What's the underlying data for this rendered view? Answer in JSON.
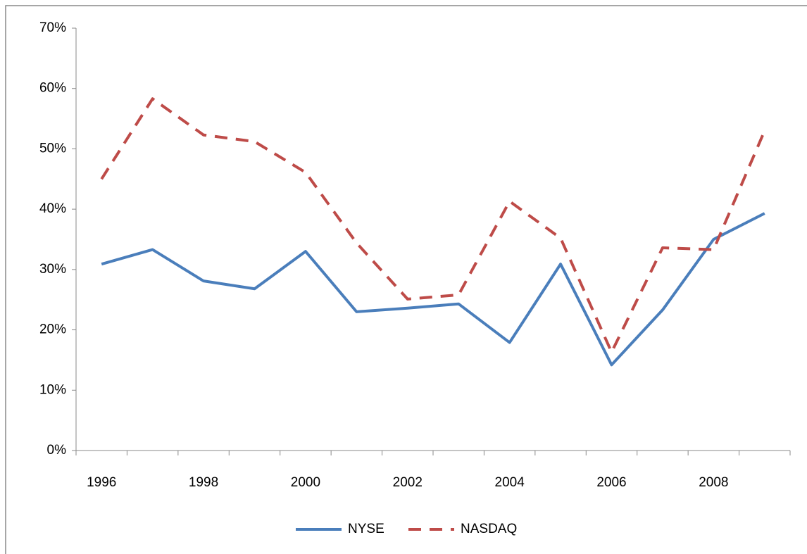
{
  "chart_data": {
    "type": "line",
    "categories": [
      "1996",
      null,
      "1998",
      null,
      "2000",
      null,
      "2002",
      null,
      "2004",
      null,
      "2006",
      null,
      "2008",
      null
    ],
    "series": [
      {
        "name": "NYSE",
        "color": "#4a7ebb",
        "dash": false,
        "values": [
          30.9,
          33.3,
          28.1,
          26.8,
          33.0,
          23.0,
          23.6,
          24.3,
          17.9,
          30.9,
          14.2,
          23.3,
          35.0,
          39.3
        ]
      },
      {
        "name": "NASDAQ",
        "color": "#be4b48",
        "dash": true,
        "values": [
          45.0,
          58.3,
          52.3,
          51.2,
          46.1,
          34.4,
          25.1,
          25.8,
          41.3,
          35.2,
          16.3,
          33.6,
          33.3,
          53.0
        ]
      }
    ],
    "ylim": [
      0,
      70
    ],
    "yticks": [
      {
        "value": 0,
        "label": "0%"
      },
      {
        "value": 10,
        "label": "10%"
      },
      {
        "value": 20,
        "label": "20%"
      },
      {
        "value": 30,
        "label": "30%"
      },
      {
        "value": 40,
        "label": "40%"
      },
      {
        "value": 50,
        "label": "50%"
      },
      {
        "value": 60,
        "label": "60%"
      },
      {
        "value": 70,
        "label": "70%"
      }
    ],
    "grid": false,
    "legend": "bottom"
  }
}
